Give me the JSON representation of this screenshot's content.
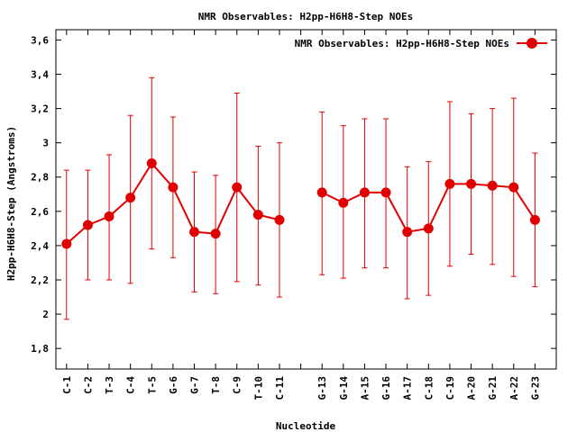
{
  "chart_data": {
    "type": "line",
    "title": "NMR Observables: H2pp-H6H8-Step NOEs",
    "xlabel": "Nucleotide",
    "ylabel": "H2pp-H6H8-Step (Angstroms)",
    "ylim": [
      1.68,
      3.66
    ],
    "yticks": [
      1.8,
      2,
      2.2,
      2.4,
      2.6,
      2.8,
      3,
      3.2,
      3.4,
      3.6
    ],
    "ytick_labels": [
      "1,8",
      "2",
      "2,2",
      "2,4",
      "2,6",
      "2,8",
      "3",
      "3,2",
      "3,4",
      "3,6"
    ],
    "xlim": [
      0.5,
      24
    ],
    "grid": false,
    "legend_position": "top-right",
    "colors": {
      "series": "#e00000",
      "axis": "#000000"
    },
    "categories": [
      "C-1",
      "C-2",
      "T-3",
      "C-4",
      "T-5",
      "G-6",
      "G-7",
      "T-8",
      "C-9",
      "T-10",
      "C-11",
      "",
      "G-13",
      "G-14",
      "A-15",
      "G-16",
      "A-17",
      "C-18",
      "C-19",
      "A-20",
      "G-21",
      "A-22",
      "G-23"
    ],
    "series": [
      {
        "name": "NMR Observables: H2pp-H6H8-Step NOEs",
        "values": [
          2.41,
          2.52,
          2.57,
          2.68,
          2.88,
          2.74,
          2.48,
          2.47,
          2.74,
          2.58,
          2.55,
          null,
          2.71,
          2.65,
          2.71,
          2.71,
          2.48,
          2.5,
          2.76,
          2.76,
          2.75,
          2.74,
          2.55
        ],
        "error_low": [
          1.97,
          2.2,
          2.2,
          2.18,
          2.38,
          2.33,
          2.13,
          2.12,
          2.19,
          2.17,
          2.1,
          null,
          2.23,
          2.21,
          2.27,
          2.27,
          2.09,
          2.11,
          2.28,
          2.35,
          2.29,
          2.22,
          2.16
        ],
        "error_high": [
          2.84,
          2.84,
          2.93,
          3.16,
          3.38,
          3.15,
          2.83,
          2.81,
          3.29,
          2.98,
          3.0,
          null,
          3.18,
          3.1,
          3.14,
          3.14,
          2.86,
          2.89,
          3.24,
          3.17,
          3.2,
          3.26,
          2.94
        ]
      }
    ]
  }
}
